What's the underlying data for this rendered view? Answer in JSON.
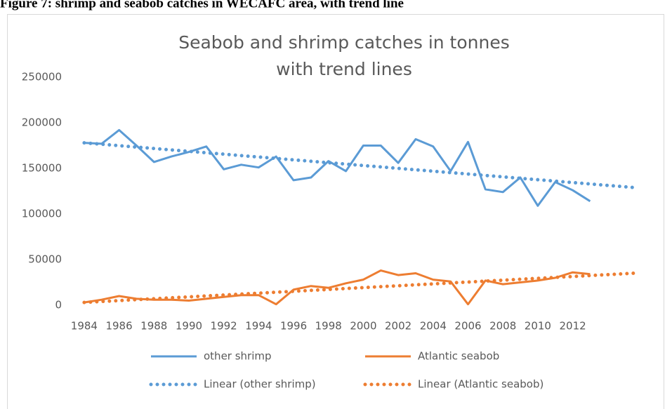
{
  "caption": "Figure 7: shrimp and seabob catches in WECAFC area, with trend line",
  "chart_data": {
    "type": "line",
    "title": [
      "Seabob and shrimp catches in tonnes",
      "with trend lines"
    ],
    "x": [
      1984,
      1985,
      1986,
      1987,
      1988,
      1989,
      1990,
      1991,
      1992,
      1993,
      1994,
      1995,
      1996,
      1997,
      1998,
      1999,
      2000,
      2001,
      2002,
      2003,
      2004,
      2005,
      2006,
      2007,
      2008,
      2009,
      2010,
      2011,
      2012,
      2013
    ],
    "xlim": [
      1983.2,
      2015.8
    ],
    "xticks": [
      1984,
      1986,
      1988,
      1990,
      1992,
      1994,
      1996,
      1998,
      2000,
      2002,
      2004,
      2006,
      2008,
      2010,
      2012
    ],
    "ylim": [
      0,
      250000
    ],
    "yticks": [
      0,
      50000,
      100000,
      150000,
      200000,
      250000
    ],
    "grid": false,
    "legend": "bottom",
    "series": [
      {
        "name": "other shrimp",
        "color": "#5b9bd5",
        "style": "solid",
        "values": [
          178000,
          177000,
          192000,
          175000,
          157000,
          163000,
          168000,
          174000,
          149000,
          154000,
          151000,
          163000,
          137000,
          140000,
          158000,
          147000,
          175000,
          175000,
          156000,
          182000,
          174000,
          147000,
          179000,
          127000,
          124000,
          140000,
          109000,
          135000,
          126000,
          114000
        ]
      },
      {
        "name": "Atlantic seabob",
        "color": "#ed7d31",
        "style": "solid",
        "values": [
          3000,
          6000,
          10000,
          7000,
          6000,
          6000,
          5000,
          7000,
          9000,
          11000,
          11000,
          1000,
          17000,
          21000,
          19000,
          24000,
          28000,
          38000,
          33000,
          35000,
          28000,
          26000,
          1000,
          27000,
          23000,
          25000,
          27000,
          30000,
          36000,
          34000
        ]
      },
      {
        "name": "Linear (other shrimp)",
        "color": "#5b9bd5",
        "style": "dotted",
        "x": [
          1984,
          2015.5
        ],
        "values": [
          178000,
          129000
        ]
      },
      {
        "name": "Linear (Atlantic seabob)",
        "color": "#ed7d31",
        "style": "dotted",
        "x": [
          1984,
          2015.5
        ],
        "values": [
          3000,
          35000
        ]
      }
    ]
  }
}
